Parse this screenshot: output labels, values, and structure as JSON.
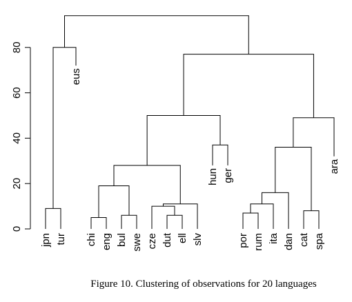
{
  "chart_data": {
    "type": "dendrogram",
    "ylim": [
      0,
      95
    ],
    "yticks": [
      0,
      20,
      40,
      60,
      80
    ],
    "leaves": [
      {
        "id": "jpn",
        "x": 0,
        "label": "jpn"
      },
      {
        "id": "tur",
        "x": 1,
        "label": "tur"
      },
      {
        "id": "eus",
        "x": 2,
        "label": "eus",
        "height": 72
      },
      {
        "id": "chi",
        "x": 3,
        "label": "chi"
      },
      {
        "id": "eng",
        "x": 4,
        "label": "eng"
      },
      {
        "id": "bul",
        "x": 5,
        "label": "bul"
      },
      {
        "id": "swe",
        "x": 6,
        "label": "swe"
      },
      {
        "id": "cze",
        "x": 7,
        "label": "cze"
      },
      {
        "id": "dut",
        "x": 8,
        "label": "dut"
      },
      {
        "id": "ell",
        "x": 9,
        "label": "ell"
      },
      {
        "id": "slv",
        "x": 10,
        "label": "slv"
      },
      {
        "id": "hun",
        "x": 11,
        "label": "hun",
        "height": 28
      },
      {
        "id": "ger",
        "x": 12,
        "label": "ger",
        "height": 28
      },
      {
        "id": "por",
        "x": 13,
        "label": "por"
      },
      {
        "id": "rum",
        "x": 14,
        "label": "rum"
      },
      {
        "id": "ita",
        "x": 15,
        "label": "ita"
      },
      {
        "id": "dan",
        "x": 16,
        "label": "dan"
      },
      {
        "id": "cat",
        "x": 17,
        "label": "cat"
      },
      {
        "id": "spa",
        "x": 18,
        "label": "spa"
      },
      {
        "id": "ara",
        "x": 19,
        "label": "ara",
        "height": 32
      }
    ],
    "merges": [
      {
        "id": "m1",
        "left": "jpn",
        "right": "tur",
        "height": 9
      },
      {
        "id": "m2",
        "left": "m1",
        "right": "eus",
        "height": 80
      },
      {
        "id": "m3",
        "left": "chi",
        "right": "eng",
        "height": 5
      },
      {
        "id": "m4",
        "left": "bul",
        "right": "swe",
        "height": 6
      },
      {
        "id": "m5",
        "left": "m3",
        "right": "m4",
        "height": 19
      },
      {
        "id": "m6",
        "left": "dut",
        "right": "ell",
        "height": 6
      },
      {
        "id": "m7",
        "left": "cze",
        "right": "m6",
        "height": 10
      },
      {
        "id": "m8",
        "left": "m7",
        "right": "slv",
        "height": 11
      },
      {
        "id": "m9",
        "left": "m5",
        "right": "m8",
        "height": 28
      },
      {
        "id": "m10",
        "left": "hun",
        "right": "ger",
        "height": 37
      },
      {
        "id": "m11",
        "left": "m9",
        "right": "m10",
        "height": 50
      },
      {
        "id": "m12",
        "left": "por",
        "right": "rum",
        "height": 7
      },
      {
        "id": "m13",
        "left": "m12",
        "right": "ita",
        "height": 11
      },
      {
        "id": "m14",
        "left": "m13",
        "right": "dan",
        "height": 16
      },
      {
        "id": "m15",
        "left": "cat",
        "right": "spa",
        "height": 8
      },
      {
        "id": "m16",
        "left": "m14",
        "right": "m15",
        "height": 36
      },
      {
        "id": "m17",
        "left": "m16",
        "right": "ara",
        "height": 49
      },
      {
        "id": "m18",
        "left": "m11",
        "right": "m17",
        "height": 77
      },
      {
        "id": "m19",
        "left": "m2",
        "right": "m18",
        "height": 94
      }
    ]
  },
  "caption": "Figure 10. Clustering of observations for 20 languages"
}
